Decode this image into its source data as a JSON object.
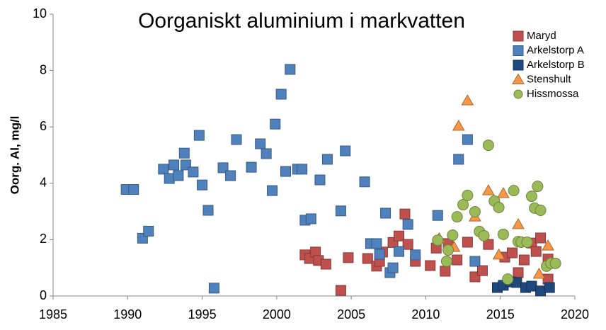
{
  "chart_data": {
    "type": "scatter",
    "title": "Oorganiskt aluminium i markvatten",
    "y_label": "Oorg. Al, mg/l",
    "xlim": [
      1985,
      2020
    ],
    "xticks": [
      1985,
      1990,
      1995,
      2000,
      2005,
      2010,
      2015,
      2020
    ],
    "ylim": [
      0,
      10
    ],
    "yticks": [
      0,
      2,
      4,
      6,
      8,
      10
    ],
    "grid": false,
    "legend": "top-right",
    "series": [
      {
        "name": "Maryd",
        "color": "#c0504d",
        "marker": "square",
        "x": [
          2001.9,
          2002.2,
          2002.6,
          2002.8,
          2003.3,
          2004.3,
          2004.8,
          2006.1,
          2006.7,
          2006.9,
          2007.1,
          2007.8,
          2008.2,
          2008.6,
          2008.8,
          2009.3,
          2010.3,
          2010.7,
          2011.3,
          2011.5,
          2012.1,
          2012.8,
          2013.3,
          2013.8,
          2014.2,
          2015.3,
          2015.8,
          2016.2,
          2016.6,
          2017.1,
          2017.4,
          2017.7,
          2018.2,
          2018.2
        ],
        "values": [
          1.46,
          1.33,
          1.56,
          1.26,
          1.13,
          0.2,
          1.36,
          1.33,
          1.06,
          1.23,
          1.56,
          1.9,
          2.13,
          2.91,
          1.83,
          1.23,
          1.08,
          1.7,
          0.88,
          1.86,
          1.28,
          1.91,
          0.68,
          0.9,
          1.83,
          1.38,
          1.53,
          0.83,
          1.28,
          1.88,
          1.58,
          2.06,
          1.31,
          0.6
        ]
      },
      {
        "name": "Arkelstorp A",
        "color": "#4f81bd",
        "marker": "square",
        "x": [
          1989.9,
          1990.4,
          1991.0,
          1991.4,
          1992.4,
          1992.8,
          1993.1,
          1993.4,
          1993.8,
          1993.9,
          1994.4,
          1994.8,
          1995.0,
          1995.4,
          1995.8,
          1996.4,
          1996.9,
          1997.3,
          1998.3,
          1998.9,
          1999.3,
          1999.7,
          1999.9,
          2000.3,
          2000.9,
          2000.6,
          2001.4,
          2001.7,
          2001.9,
          2002.3,
          2002.9,
          2003.4,
          2004.3,
          2004.6,
          2005.9,
          2006.3,
          2006.7,
          2006.9,
          2007.3,
          2007.6,
          2007.8,
          2008.2,
          2008.8,
          2009.3,
          2010.8,
          2012.2,
          2012.8,
          2013.3
        ],
        "values": [
          3.78,
          3.78,
          2.05,
          2.3,
          4.5,
          4.17,
          4.65,
          4.27,
          5.07,
          4.65,
          4.4,
          5.7,
          3.94,
          3.04,
          0.28,
          4.55,
          4.27,
          5.55,
          4.57,
          5.4,
          5.05,
          3.74,
          6.1,
          7.16,
          8.04,
          4.42,
          4.5,
          4.5,
          2.69,
          2.74,
          4.12,
          4.85,
          3.02,
          5.15,
          4.05,
          1.86,
          1.86,
          1.48,
          2.94,
          0.83,
          1.0,
          1.58,
          2.54,
          1.46,
          2.86,
          4.85,
          5.55,
          1.23
        ]
      },
      {
        "name": "Arkelstorp B",
        "color": "#1f497d",
        "marker": "square",
        "x": [
          2014.8,
          2015.2,
          2015.7,
          2016.1,
          2016.7,
          2017.1,
          2017.7,
          2018.3
        ],
        "values": [
          0.3,
          0.38,
          0.5,
          0.48,
          0.3,
          0.35,
          0.18,
          0.3
        ]
      },
      {
        "name": "Stenshult",
        "color": "#f79646",
        "marker": "triangle",
        "x": [
          2010.9,
          2011.9,
          2012.2,
          2012.8,
          2013.3,
          2014.2,
          2014.9,
          2015.2,
          2016.2,
          2016.5,
          2017.6,
          2018.2
        ],
        "values": [
          2.04,
          1.73,
          6.03,
          6.93,
          2.81,
          3.74,
          1.46,
          3.64,
          2.54,
          1.9,
          0.78,
          1.78
        ]
      },
      {
        "name": "Hissmossa",
        "color": "#9bbb59",
        "marker": "circle",
        "x": [
          2010.8,
          2011.4,
          2011.5,
          2011.8,
          2012.1,
          2012.5,
          2012.8,
          2013.3,
          2013.6,
          2013.9,
          2014.2,
          2014.6,
          2014.9,
          2015.2,
          2015.5,
          2015.9,
          2016.2,
          2016.4,
          2016.8,
          2017.1,
          2017.3,
          2017.5,
          2017.7,
          2018.1,
          2018.4,
          2018.7
        ],
        "values": [
          1.98,
          1.23,
          1.63,
          2.16,
          2.81,
          3.24,
          3.57,
          2.99,
          2.29,
          2.14,
          5.35,
          3.37,
          3.14,
          2.19,
          0.6,
          3.74,
          1.93,
          1.91,
          1.91,
          3.54,
          3.12,
          3.89,
          3.04,
          1.06,
          1.16,
          1.16
        ]
      }
    ]
  }
}
